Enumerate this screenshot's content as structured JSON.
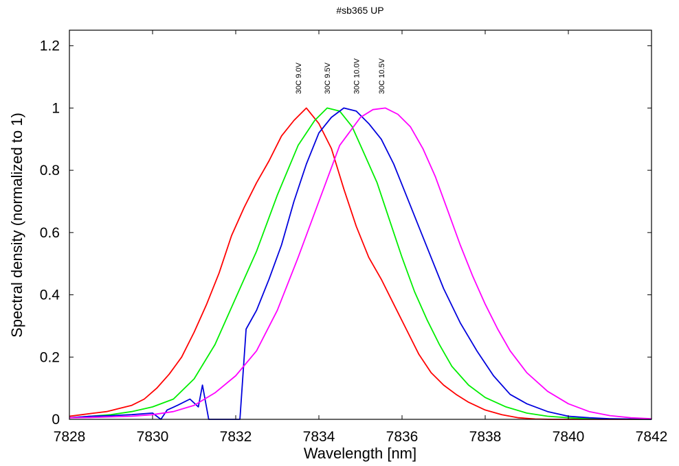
{
  "chart_data": {
    "type": "line",
    "title": "#sb365 UP",
    "xlabel": "Wavelength [nm]",
    "ylabel": "Spectral density (normalized to 1)",
    "xlim": [
      7828,
      7842
    ],
    "ylim": [
      0,
      1.25
    ],
    "xticks": [
      7828,
      7830,
      7832,
      7834,
      7836,
      7838,
      7840,
      7842
    ],
    "xtick_labels": [
      "7828",
      "7830",
      "7832",
      "7834",
      "7836",
      "7838",
      "7840",
      "7842"
    ],
    "yticks": [
      0,
      0.2,
      0.4,
      0.6,
      0.8,
      1,
      1.2
    ],
    "ytick_labels": [
      "0",
      "0.2",
      "0.4",
      "0.6",
      "0.8",
      "1",
      "1.2"
    ],
    "grid": false,
    "legend": "none",
    "series": [
      {
        "name": "30C 9.0V",
        "color": "#ff0000",
        "label_x": 7833.5,
        "x": [
          7828,
          7828.3,
          7828.6,
          7828.9,
          7829.2,
          7829.5,
          7829.8,
          7830.1,
          7830.4,
          7830.7,
          7831.0,
          7831.3,
          7831.6,
          7831.9,
          7832.2,
          7832.5,
          7832.8,
          7833.1,
          7833.4,
          7833.7,
          7834.0,
          7834.3,
          7834.6,
          7834.9,
          7835.2,
          7835.5,
          7835.8,
          7836.1,
          7836.4,
          7836.7,
          7837.0,
          7837.3,
          7837.6,
          7838.0,
          7838.4,
          7838.8,
          7839.2,
          7839.6,
          7840.0,
          7841.0,
          7842.0
        ],
        "y": [
          0.01,
          0.015,
          0.02,
          0.025,
          0.035,
          0.045,
          0.065,
          0.1,
          0.145,
          0.2,
          0.28,
          0.37,
          0.47,
          0.59,
          0.68,
          0.76,
          0.83,
          0.91,
          0.96,
          1.0,
          0.95,
          0.87,
          0.74,
          0.62,
          0.52,
          0.45,
          0.37,
          0.29,
          0.21,
          0.15,
          0.11,
          0.08,
          0.055,
          0.03,
          0.015,
          0.005,
          0.001,
          0.0,
          0.0,
          0.0,
          0.0
        ]
      },
      {
        "name": "30C 9.5V",
        "color": "#00ee00",
        "label_x": 7834.2,
        "x": [
          7828,
          7828.5,
          7829.0,
          7829.5,
          7830.0,
          7830.5,
          7831.0,
          7831.5,
          7832.0,
          7832.5,
          7833.0,
          7833.5,
          7833.9,
          7834.2,
          7834.5,
          7834.8,
          7835.1,
          7835.4,
          7835.7,
          7836.0,
          7836.3,
          7836.6,
          7836.9,
          7837.2,
          7837.6,
          7838.0,
          7838.5,
          7839.0,
          7839.5,
          7840.0,
          7840.5,
          7841.0,
          7842.0
        ],
        "y": [
          0.005,
          0.01,
          0.015,
          0.025,
          0.04,
          0.065,
          0.13,
          0.24,
          0.39,
          0.54,
          0.72,
          0.88,
          0.96,
          1.0,
          0.99,
          0.94,
          0.85,
          0.76,
          0.64,
          0.52,
          0.41,
          0.32,
          0.24,
          0.17,
          0.11,
          0.07,
          0.04,
          0.02,
          0.01,
          0.005,
          0.002,
          0.001,
          0.0
        ]
      },
      {
        "name": "30C 10.0V",
        "color": "#0000dd",
        "label_x": 7834.9,
        "x": [
          7828,
          7828.5,
          7829.0,
          7829.5,
          7830.0,
          7830.2,
          7830.35,
          7830.6,
          7830.9,
          7831.1,
          7831.2,
          7831.35,
          7831.5,
          7831.7,
          7832.0,
          7832.1,
          7832.25,
          7832.5,
          7832.8,
          7833.1,
          7833.4,
          7833.7,
          7834.0,
          7834.3,
          7834.6,
          7834.9,
          7835.2,
          7835.5,
          7835.8,
          7836.1,
          7836.4,
          7836.7,
          7837.0,
          7837.4,
          7837.8,
          7838.2,
          7838.6,
          7839.0,
          7839.5,
          7840.0,
          7840.5,
          7841.0,
          7842.0
        ],
        "y": [
          0.005,
          0.01,
          0.012,
          0.015,
          0.02,
          0.0,
          0.03,
          0.045,
          0.065,
          0.04,
          0.11,
          0.0,
          0.0,
          0.0,
          0.0,
          0.0,
          0.29,
          0.35,
          0.45,
          0.56,
          0.7,
          0.82,
          0.92,
          0.97,
          1.0,
          0.99,
          0.95,
          0.9,
          0.82,
          0.72,
          0.62,
          0.52,
          0.42,
          0.31,
          0.22,
          0.14,
          0.08,
          0.05,
          0.025,
          0.01,
          0.005,
          0.002,
          0.0
        ]
      },
      {
        "name": "30C 10.5V",
        "color": "#ff00ff",
        "label_x": 7835.5,
        "x": [
          7828,
          7828.5,
          7829.0,
          7829.5,
          7830.0,
          7830.5,
          7831.0,
          7831.5,
          7832.0,
          7832.5,
          7833.0,
          7833.5,
          7834.0,
          7834.5,
          7835.0,
          7835.3,
          7835.6,
          7835.9,
          7836.2,
          7836.5,
          7836.8,
          7837.1,
          7837.4,
          7837.7,
          7838.0,
          7838.3,
          7838.6,
          7839.0,
          7839.5,
          7840.0,
          7840.5,
          7841.0,
          7841.5,
          7842.0
        ],
        "y": [
          0.005,
          0.006,
          0.008,
          0.01,
          0.015,
          0.025,
          0.045,
          0.085,
          0.14,
          0.22,
          0.35,
          0.52,
          0.7,
          0.88,
          0.97,
          0.995,
          1.0,
          0.98,
          0.94,
          0.87,
          0.78,
          0.67,
          0.56,
          0.46,
          0.37,
          0.29,
          0.22,
          0.15,
          0.09,
          0.05,
          0.025,
          0.012,
          0.005,
          0.002
        ]
      }
    ]
  }
}
